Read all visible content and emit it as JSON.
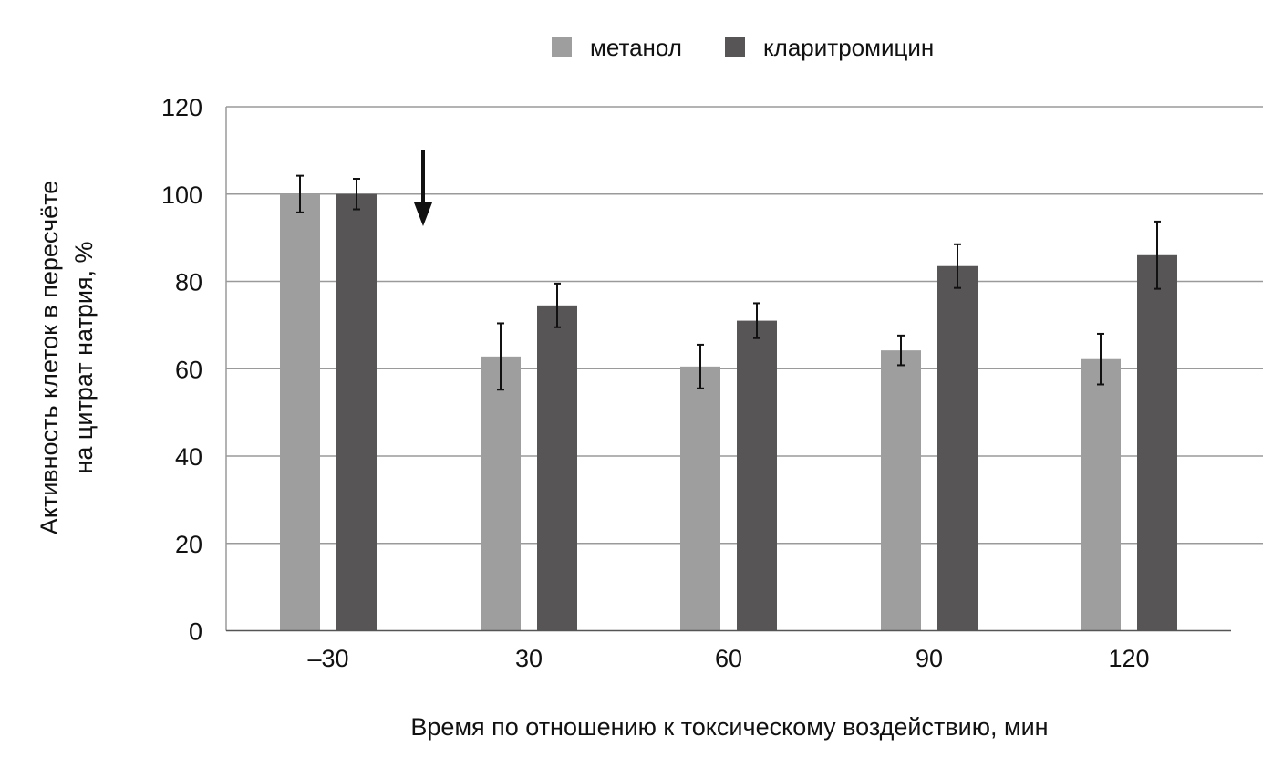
{
  "chart_data": {
    "type": "bar",
    "categories": [
      "–30",
      "30",
      "60",
      "90",
      "120"
    ],
    "series": [
      {
        "name": "метанол",
        "color": "#9e9e9e",
        "values": [
          100,
          62.8,
          60.5,
          64.2,
          62.2
        ],
        "errors": [
          4.2,
          7.6,
          5.0,
          3.4,
          5.8
        ]
      },
      {
        "name": "кларитромицин",
        "color": "#575556",
        "values": [
          100,
          74.5,
          71.0,
          83.5,
          86.0
        ],
        "errors": [
          3.5,
          5.0,
          4.0,
          5.0,
          7.7
        ]
      }
    ],
    "yticks": [
      0,
      20,
      40,
      60,
      80,
      100,
      120
    ],
    "ylim": [
      0,
      120
    ],
    "ylabel_lines": [
      "Активность клеток в пересчёте",
      "на цитрат натрия, %"
    ],
    "xlabel": "Время по отношению к токсическому воздействию, мин",
    "legend_position": "top-center",
    "grid": true,
    "annotation": "arrow pointing down between –30 and 30 (time of toxic exposure)"
  }
}
